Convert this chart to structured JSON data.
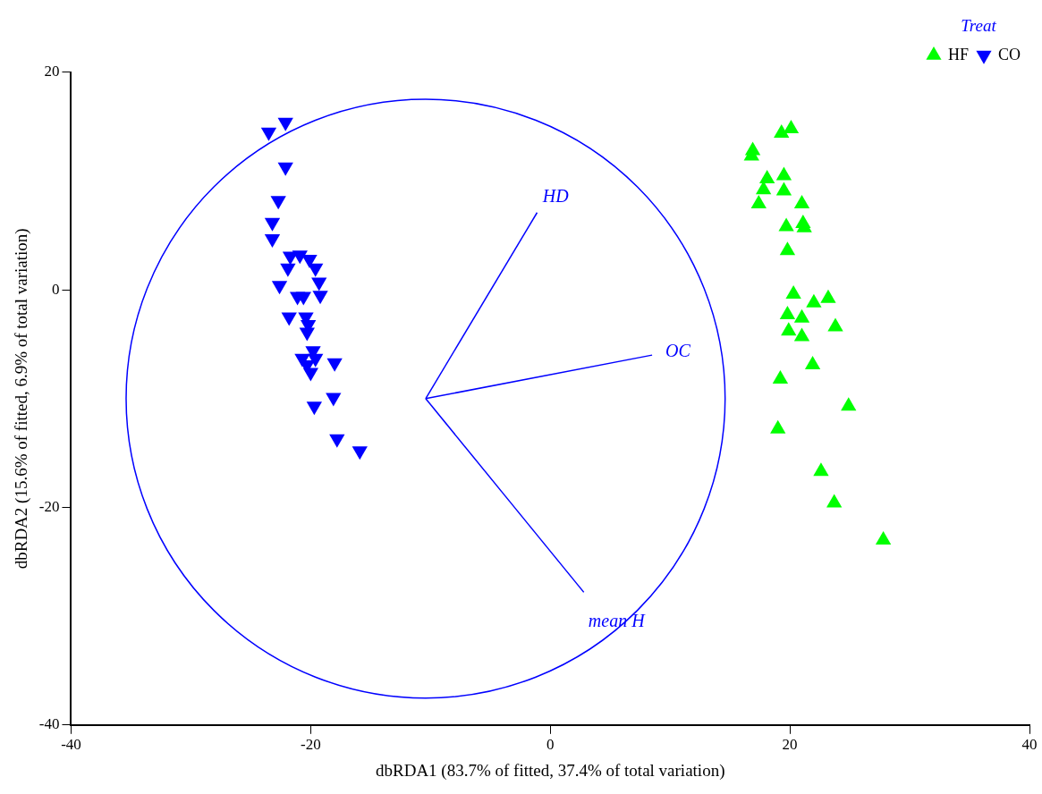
{
  "chart_data": {
    "type": "scatter",
    "xlabel": "dbRDA1 (83.7% of fitted, 37.4% of total variation)",
    "ylabel": "dbRDA2 (15.6% of fitted, 6.9% of total variation)",
    "legend_title": "Treat",
    "legend": "top right",
    "grid": false,
    "xlim": [
      -40,
      40
    ],
    "xticks": [
      -40,
      -20,
      0,
      20,
      40
    ],
    "ylim": [
      -40,
      20
    ],
    "yticks": [
      -40,
      -20,
      0,
      20
    ],
    "series": [
      {
        "name": "HF",
        "marker": "triangle",
        "color": "#00ff00",
        "x": [
          20.1,
          19.3,
          16.9,
          16.8,
          18.1,
          19.5,
          17.8,
          19.5,
          17.4,
          21.0,
          19.7,
          21.1,
          21.2,
          19.8,
          20.3,
          22.0,
          23.2,
          19.8,
          21.0,
          23.8,
          19.9,
          21.0,
          21.9,
          19.2,
          24.9,
          19.0,
          22.6,
          23.7,
          27.8
        ],
        "values": [
          14.8,
          14.4,
          12.8,
          12.3,
          10.2,
          10.5,
          9.2,
          9.1,
          7.9,
          7.9,
          5.8,
          6.1,
          5.7,
          3.6,
          -0.4,
          -1.2,
          -0.8,
          -2.3,
          -2.6,
          -3.4,
          -3.8,
          -4.3,
          -6.9,
          -8.2,
          -10.7,
          -12.8,
          -16.7,
          -19.6,
          -23.0
        ]
      },
      {
        "name": "CO",
        "marker": "triangle-down",
        "color": "#0000ff",
        "x": [
          -22.1,
          -23.5,
          -22.1,
          -22.7,
          -23.2,
          -23.2,
          -20.9,
          -21.7,
          -20.1,
          -19.6,
          -21.9,
          -22.6,
          -19.3,
          -19.2,
          -21.1,
          -20.6,
          -21.8,
          -20.4,
          -20.2,
          -20.3,
          -19.8,
          -20.7,
          -19.6,
          -20.0,
          -18.0,
          -20.3,
          -18.1,
          -19.7,
          -17.8,
          -15.9
        ],
        "values": [
          15.4,
          14.5,
          11.3,
          8.2,
          6.2,
          4.7,
          3.2,
          3.1,
          2.8,
          2.0,
          2.0,
          0.4,
          0.7,
          -0.5,
          -0.6,
          -0.6,
          -2.5,
          -2.5,
          -3.2,
          -3.9,
          -5.6,
          -6.3,
          -6.3,
          -7.6,
          -6.7,
          -6.9,
          -9.9,
          -10.7,
          -13.7,
          -14.8
        ]
      },
      {
        "name": "HD",
        "type": "line",
        "color": "#0000ff",
        "x": [
          -10.4,
          -1.1
        ],
        "values": [
          -10,
          7.1
        ]
      },
      {
        "name": "OC",
        "type": "line",
        "color": "#0000ff",
        "x": [
          -10.4,
          8.5
        ],
        "values": [
          -10,
          -6.0
        ]
      },
      {
        "name": "mean H",
        "type": "line",
        "color": "#0000ff",
        "x": [
          -10.4,
          2.8
        ],
        "values": [
          -10,
          -27.8
        ]
      }
    ]
  }
}
